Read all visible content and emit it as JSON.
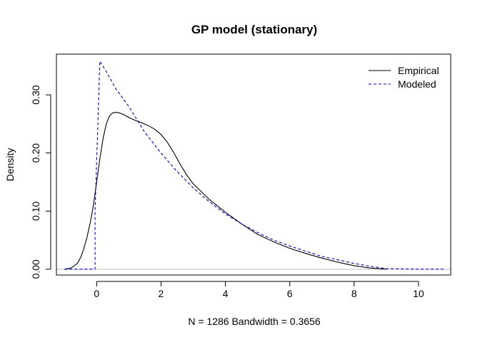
{
  "chart_data": {
    "type": "line",
    "title": "GP model (stationary)",
    "xlabel": "N = 1286   Bandwidth = 0.3656",
    "ylabel": "Density",
    "xlim": [
      -1.25,
      11.0
    ],
    "ylim": [
      -0.01,
      0.37
    ],
    "xticks": [
      0,
      2,
      4,
      6,
      8,
      10
    ],
    "xtick_labels": [
      "0",
      "2",
      "4",
      "6",
      "8",
      "10"
    ],
    "yticks": [
      0.0,
      0.1,
      0.2,
      0.3
    ],
    "ytick_labels": [
      "0.00",
      "0.10",
      "0.20",
      "0.30"
    ],
    "grid": false,
    "baseline": 0,
    "legend": {
      "position": "top-right"
    },
    "series": [
      {
        "name": "Empirical",
        "color": "#000000",
        "dash": "solid",
        "x": [
          -1.0,
          -0.8,
          -0.6,
          -0.5,
          -0.4,
          -0.3,
          -0.2,
          -0.1,
          0.0,
          0.1,
          0.2,
          0.3,
          0.4,
          0.5,
          0.6,
          0.7,
          0.8,
          1.0,
          1.2,
          1.4,
          1.6,
          1.8,
          2.0,
          2.2,
          2.4,
          2.6,
          2.8,
          3.0,
          3.5,
          4.0,
          4.5,
          5.0,
          5.5,
          6.0,
          6.5,
          7.0,
          7.5,
          8.0,
          8.5,
          9.0
        ],
        "y": [
          0.0,
          0.002,
          0.01,
          0.02,
          0.035,
          0.055,
          0.08,
          0.11,
          0.15,
          0.19,
          0.225,
          0.25,
          0.264,
          0.269,
          0.27,
          0.269,
          0.267,
          0.261,
          0.256,
          0.252,
          0.247,
          0.241,
          0.232,
          0.218,
          0.2,
          0.18,
          0.162,
          0.147,
          0.12,
          0.098,
          0.078,
          0.06,
          0.047,
          0.036,
          0.027,
          0.019,
          0.012,
          0.006,
          0.002,
          0.0
        ]
      },
      {
        "name": "Modeled",
        "color": "#0000cc",
        "dash": "dashed",
        "x": [
          -1.0,
          -0.05,
          -0.05,
          0.1,
          0.3,
          0.6,
          1.0,
          1.5,
          2.0,
          2.5,
          3.0,
          3.5,
          4.0,
          4.5,
          5.0,
          5.5,
          6.0,
          6.5,
          7.0,
          7.5,
          8.0,
          8.5,
          9.0,
          10.0,
          10.8
        ],
        "y": [
          0.0,
          0.0,
          0.1,
          0.358,
          0.34,
          0.31,
          0.28,
          0.235,
          0.2,
          0.168,
          0.14,
          0.116,
          0.095,
          0.078,
          0.063,
          0.05,
          0.04,
          0.031,
          0.022,
          0.016,
          0.01,
          0.005,
          0.001,
          0.0,
          0.0
        ]
      }
    ]
  }
}
